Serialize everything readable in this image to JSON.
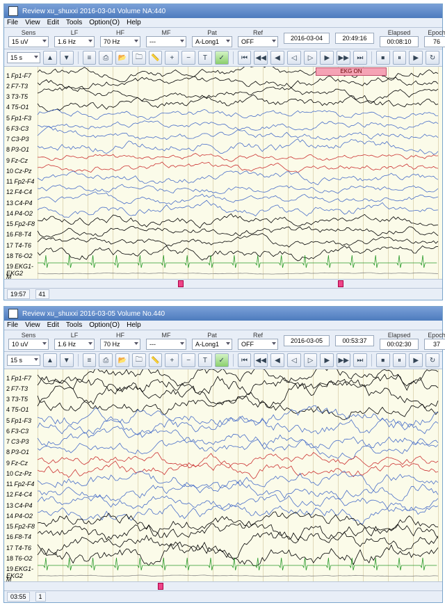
{
  "windows": [
    {
      "title_prefix": "Review",
      "title_subject": "xu_shuxxi",
      "title_date": "2016-03-04",
      "title_file": "Volume NA:440",
      "menus": [
        "File",
        "View",
        "Edit",
        "Tools",
        "Option(O)",
        "Help"
      ],
      "sens": {
        "label": "Sens",
        "value": "15 uV"
      },
      "lf": {
        "label": "LF",
        "value": "1.6 Hz"
      },
      "hf": {
        "label": "HF",
        "value": "70 Hz"
      },
      "mf": {
        "label": "MF",
        "value": "---"
      },
      "pat": {
        "label": "Pat",
        "value": "A-Long1"
      },
      "ref": {
        "label": "Ref",
        "value": "OFF"
      },
      "date_field": "2016-03-04",
      "elapsed_label": "Elapsed",
      "epoch_label": "Epoch",
      "time_a": "20:49:16",
      "time_b": "00:08:10",
      "epoch": "76",
      "timescale": "15 s",
      "event_label": "EKG  ON",
      "show_event": true,
      "status_time": "19:57",
      "status_val": "41",
      "channels": [
        {
          "n": 1,
          "name": "Fp1-F7",
          "color": "#000000",
          "amp": 1.0
        },
        {
          "n": 2,
          "name": "F7-T3",
          "color": "#000000",
          "amp": 1.0
        },
        {
          "n": 3,
          "name": "T3-T5",
          "color": "#000000",
          "amp": 0.9
        },
        {
          "n": 4,
          "name": "T5-O1",
          "color": "#000000",
          "amp": 1.1
        },
        {
          "n": 5,
          "name": "Fp1-F3",
          "color": "#4a6fc9",
          "amp": 0.8
        },
        {
          "n": 6,
          "name": "F3-C3",
          "color": "#4a6fc9",
          "amp": 0.8
        },
        {
          "n": 7,
          "name": "C3-P3",
          "color": "#4a6fc9",
          "amp": 0.9
        },
        {
          "n": 8,
          "name": "P3-O1",
          "color": "#4a6fc9",
          "amp": 1.1
        },
        {
          "n": 9,
          "name": "Fz-Cz",
          "color": "#cc3333",
          "amp": 0.7
        },
        {
          "n": 10,
          "name": "Cz-Pz",
          "color": "#cc3333",
          "amp": 0.8
        },
        {
          "n": 11,
          "name": "Fp2-F4",
          "color": "#4a6fc9",
          "amp": 0.9
        },
        {
          "n": 12,
          "name": "F4-C4",
          "color": "#4a6fc9",
          "amp": 0.8
        },
        {
          "n": 13,
          "name": "C4-P4",
          "color": "#4a6fc9",
          "amp": 0.8
        },
        {
          "n": 14,
          "name": "P4-O2",
          "color": "#4a6fc9",
          "amp": 1.0
        },
        {
          "n": 15,
          "name": "Fp2-F8",
          "color": "#000000",
          "amp": 1.0
        },
        {
          "n": 16,
          "name": "F8-T4",
          "color": "#000000",
          "amp": 0.9
        },
        {
          "n": 17,
          "name": "T4-T6",
          "color": "#000000",
          "amp": 0.9
        },
        {
          "n": 18,
          "name": "T6-O2",
          "color": "#000000",
          "amp": 1.2
        },
        {
          "n": 19,
          "name": "EKG1-EKG2",
          "color": "#2a9a2a",
          "amp": 1.0,
          "ekg": true
        },
        {
          "n": "",
          "name": "M",
          "color": "#888888",
          "amp": 0.1
        }
      ],
      "grid_count": 16,
      "scroll_marks": [
        0.35,
        0.75
      ]
    },
    {
      "title_prefix": "Review",
      "title_subject": "xu_shuxxi",
      "title_date": "2016-03-05",
      "title_file": "Volume No.440",
      "menus": [
        "File",
        "View",
        "Edit",
        "Tools",
        "Option(O)",
        "Help"
      ],
      "sens": {
        "label": "Sens",
        "value": "10 uV"
      },
      "lf": {
        "label": "LF",
        "value": "1.6 Hz"
      },
      "hf": {
        "label": "HF",
        "value": "70 Hz"
      },
      "mf": {
        "label": "MF",
        "value": "---"
      },
      "pat": {
        "label": "Pat",
        "value": "A-Long1"
      },
      "ref": {
        "label": "Ref",
        "value": "OFF"
      },
      "date_field": "2016-03-05",
      "elapsed_label": "Elapsed",
      "epoch_label": "Epoch",
      "time_a": "00:53:37",
      "time_b": "00:02:30",
      "epoch": "37",
      "timescale": "15 s",
      "event_label": "",
      "show_event": false,
      "status_time": "03:55",
      "status_val": "1",
      "channels": [
        {
          "n": 1,
          "name": "Fp1-F7",
          "color": "#000000",
          "amp": 1.6
        },
        {
          "n": 2,
          "name": "F7-T3",
          "color": "#000000",
          "amp": 1.8
        },
        {
          "n": 3,
          "name": "T3-T5",
          "color": "#000000",
          "amp": 1.7
        },
        {
          "n": 4,
          "name": "T5-O1",
          "color": "#000000",
          "amp": 1.5
        },
        {
          "n": 5,
          "name": "Fp1-F3",
          "color": "#4a6fc9",
          "amp": 1.5
        },
        {
          "n": 6,
          "name": "F3-C3",
          "color": "#4a6fc9",
          "amp": 1.6
        },
        {
          "n": 7,
          "name": "C3-P3",
          "color": "#4a6fc9",
          "amp": 1.4
        },
        {
          "n": 8,
          "name": "P3-O1",
          "color": "#4a6fc9",
          "amp": 1.3
        },
        {
          "n": 9,
          "name": "Fz-Cz",
          "color": "#cc3333",
          "amp": 1.2
        },
        {
          "n": 10,
          "name": "Cz-Pz",
          "color": "#cc3333",
          "amp": 1.3
        },
        {
          "n": 11,
          "name": "Fp2-F4",
          "color": "#4a6fc9",
          "amp": 1.5
        },
        {
          "n": 12,
          "name": "F4-C4",
          "color": "#4a6fc9",
          "amp": 1.4
        },
        {
          "n": 13,
          "name": "C4-P4",
          "color": "#4a6fc9",
          "amp": 1.4
        },
        {
          "n": 14,
          "name": "P4-O2",
          "color": "#4a6fc9",
          "amp": 1.5
        },
        {
          "n": 15,
          "name": "Fp2-F8",
          "color": "#000000",
          "amp": 1.6
        },
        {
          "n": 16,
          "name": "F8-T4",
          "color": "#000000",
          "amp": 1.7
        },
        {
          "n": 17,
          "name": "T4-T6",
          "color": "#000000",
          "amp": 1.8
        },
        {
          "n": 18,
          "name": "T6-O2",
          "color": "#000000",
          "amp": 1.9
        },
        {
          "n": 19,
          "name": "EKG1-EKG2",
          "color": "#2a9a2a",
          "amp": 1.0,
          "ekg": true
        },
        {
          "n": "",
          "name": "M",
          "color": "#888888",
          "amp": 0.1
        }
      ],
      "grid_count": 16,
      "scroll_marks": [
        0.3
      ]
    }
  ],
  "icons": {
    "montage": "≡",
    "print": "⎙",
    "open": "📂",
    "folder": "🗀",
    "ruler": "📏",
    "mag_plus": "🔍+",
    "mag_minus": "🔍-",
    "text": "T",
    "pin": "📌",
    "first": "⏮",
    "rew": "◀◀",
    "prev": "◀",
    "next": "▶",
    "ffwd": "▶▶",
    "last": "⏭",
    "pause": "⏸",
    "stop": "⏹",
    "play": "▶",
    "up": "▲",
    "down": "▼"
  },
  "layout": {
    "eeg_area_height": 305,
    "channel_count": 20,
    "label_width": 48,
    "trace_width": 576
  }
}
